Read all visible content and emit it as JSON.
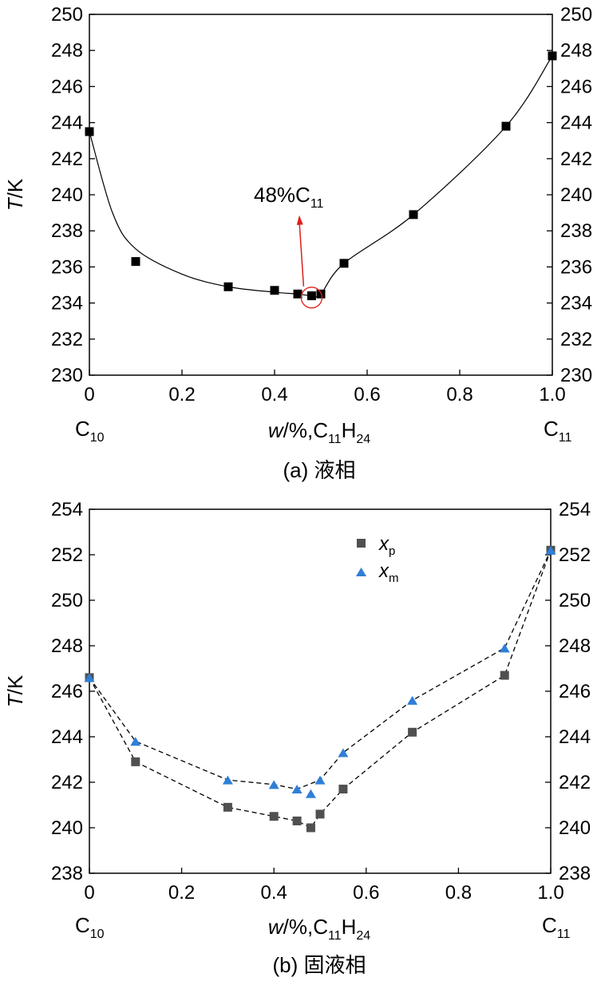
{
  "chart_data": [
    {
      "type": "scatter",
      "caption": "(a) 液相",
      "x_label": {
        "var": "w",
        "rest": "/%,C",
        "sub1": "11",
        "mid": "H",
        "sub2": "24"
      },
      "y_label": {
        "var": "T",
        "rest": "/K"
      },
      "x_left_component": {
        "base": "C",
        "sub": "10"
      },
      "x_right_component": {
        "base": "C",
        "sub": "11"
      },
      "xlim": [
        0,
        1.0
      ],
      "ylim": [
        230,
        250
      ],
      "x_ticks": [
        "0",
        "0.2",
        "0.4",
        "0.6",
        "0.8",
        "1.0"
      ],
      "y_ticks": [
        "230",
        "232",
        "234",
        "236",
        "238",
        "240",
        "242",
        "244",
        "246",
        "248",
        "250"
      ],
      "y_ticks_right": true,
      "series": [
        {
          "marker": "square",
          "color": "#000000",
          "points": [
            {
              "x": 0.0,
              "y": 243.5
            },
            {
              "x": 0.1,
              "y": 236.3
            },
            {
              "x": 0.3,
              "y": 234.9
            },
            {
              "x": 0.4,
              "y": 234.7
            },
            {
              "x": 0.45,
              "y": 234.5
            },
            {
              "x": 0.48,
              "y": 234.4
            },
            {
              "x": 0.5,
              "y": 234.5
            },
            {
              "x": 0.55,
              "y": 236.2
            },
            {
              "x": 0.7,
              "y": 238.9
            },
            {
              "x": 0.9,
              "y": 243.8
            },
            {
              "x": 1.0,
              "y": 247.7
            }
          ]
        }
      ],
      "fit_curve": {
        "style": "solid",
        "color": "#000000",
        "points": [
          {
            "x": 0.0,
            "y": 243.5
          },
          {
            "x": 0.05,
            "y": 239.0
          },
          {
            "x": 0.1,
            "y": 237.0
          },
          {
            "x": 0.2,
            "y": 235.6
          },
          {
            "x": 0.3,
            "y": 234.9
          },
          {
            "x": 0.4,
            "y": 234.6
          },
          {
            "x": 0.45,
            "y": 234.5
          },
          {
            "x": 0.48,
            "y": 234.4
          },
          {
            "x": 0.5,
            "y": 234.5
          },
          {
            "x": 0.55,
            "y": 236.2
          },
          {
            "x": 0.7,
            "y": 238.9
          },
          {
            "x": 0.9,
            "y": 243.8
          },
          {
            "x": 1.0,
            "y": 247.7
          }
        ]
      },
      "annotation": {
        "text_main": "48%C",
        "text_sub": "11",
        "color": "#e0201c",
        "points_to": {
          "x": 0.48,
          "y": 234.3
        },
        "arrow_tail": {
          "x": 0.45,
          "y": 238.0
        },
        "arrow_head": {
          "x": 0.45,
          "y": 239.0
        },
        "label_at": {
          "x": 0.36,
          "y": 239.4
        }
      }
    },
    {
      "type": "scatter",
      "caption": "(b) 固液相",
      "x_label": {
        "var": "w",
        "rest": "/%,C",
        "sub1": "11",
        "mid": "H",
        "sub2": "24"
      },
      "y_label": {
        "var": "T",
        "rest": "/K"
      },
      "x_left_component": {
        "base": "C",
        "sub": "10"
      },
      "x_right_component": {
        "base": "C",
        "sub": "11"
      },
      "xlim": [
        0,
        1.0
      ],
      "ylim": [
        238,
        254
      ],
      "x_ticks": [
        "0",
        "0.2",
        "0.4",
        "0.6",
        "0.8",
        "1.0"
      ],
      "y_ticks": [
        "238",
        "240",
        "242",
        "244",
        "246",
        "248",
        "250",
        "252",
        "254"
      ],
      "y_ticks_right": true,
      "legend_position": "top-right",
      "series": [
        {
          "name": "x",
          "name_sub": "p",
          "marker": "square",
          "color": "#505050",
          "points": [
            {
              "x": 0.0,
              "y": 246.6
            },
            {
              "x": 0.1,
              "y": 242.9
            },
            {
              "x": 0.3,
              "y": 240.9
            },
            {
              "x": 0.4,
              "y": 240.5
            },
            {
              "x": 0.45,
              "y": 240.3
            },
            {
              "x": 0.48,
              "y": 240.0
            },
            {
              "x": 0.5,
              "y": 240.6
            },
            {
              "x": 0.55,
              "y": 241.7
            },
            {
              "x": 0.7,
              "y": 244.2
            },
            {
              "x": 0.9,
              "y": 246.7
            },
            {
              "x": 1.0,
              "y": 252.2
            }
          ]
        },
        {
          "name": "x",
          "name_sub": "m",
          "marker": "triangle",
          "color": "#2f7fd8",
          "points": [
            {
              "x": 0.0,
              "y": 246.6
            },
            {
              "x": 0.1,
              "y": 243.8
            },
            {
              "x": 0.3,
              "y": 242.1
            },
            {
              "x": 0.4,
              "y": 241.9
            },
            {
              "x": 0.45,
              "y": 241.7
            },
            {
              "x": 0.48,
              "y": 241.5
            },
            {
              "x": 0.5,
              "y": 242.1
            },
            {
              "x": 0.55,
              "y": 243.3
            },
            {
              "x": 0.7,
              "y": 245.6
            },
            {
              "x": 0.9,
              "y": 247.9
            },
            {
              "x": 1.0,
              "y": 252.2
            }
          ]
        }
      ],
      "fit_curves": [
        {
          "style": "dashed",
          "color": "#000000",
          "points": [
            {
              "x": 0.0,
              "y": 246.6
            },
            {
              "x": 0.1,
              "y": 242.9
            },
            {
              "x": 0.3,
              "y": 240.9
            },
            {
              "x": 0.4,
              "y": 240.5
            },
            {
              "x": 0.45,
              "y": 240.3
            },
            {
              "x": 0.48,
              "y": 240.0
            },
            {
              "x": 0.5,
              "y": 240.6
            },
            {
              "x": 0.55,
              "y": 241.7
            },
            {
              "x": 0.7,
              "y": 244.2
            },
            {
              "x": 0.9,
              "y": 246.7
            },
            {
              "x": 1.0,
              "y": 252.2
            }
          ]
        },
        {
          "style": "dashed",
          "color": "#000000",
          "points": [
            {
              "x": 0.0,
              "y": 246.6
            },
            {
              "x": 0.1,
              "y": 243.8
            },
            {
              "x": 0.3,
              "y": 242.1
            },
            {
              "x": 0.4,
              "y": 241.9
            },
            {
              "x": 0.45,
              "y": 241.7
            },
            {
              "x": 0.5,
              "y": 242.1
            },
            {
              "x": 0.55,
              "y": 243.3
            },
            {
              "x": 0.7,
              "y": 245.6
            },
            {
              "x": 0.9,
              "y": 247.9
            },
            {
              "x": 1.0,
              "y": 252.2
            }
          ]
        }
      ]
    }
  ]
}
